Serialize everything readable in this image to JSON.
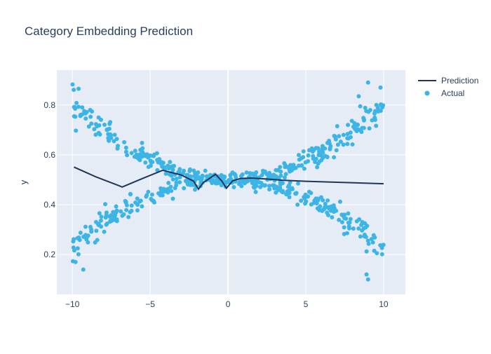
{
  "chart_data": {
    "type": "scatter",
    "title": "Category Embedding Prediction",
    "xlabel": "",
    "ylabel": "y",
    "xlim": [
      -11.0,
      11.4
    ],
    "ylim": [
      0.04,
      0.94
    ],
    "xticks": [
      -10,
      -5,
      0,
      5,
      10
    ],
    "xtick_labels": [
      "−10",
      "−5",
      "0",
      "5",
      "10"
    ],
    "yticks": [
      0.2,
      0.4,
      0.6,
      0.8
    ],
    "ytick_labels": [
      "0.2",
      "0.4",
      "0.6",
      "0.8"
    ],
    "grid": true,
    "legend_position": "top-right",
    "colors": {
      "plot_bg": "#e5ecf6",
      "grid": "#ffffff",
      "prediction": "#1f3557",
      "actual": "#3db4e6"
    },
    "series": [
      {
        "name": "Prediction",
        "kind": "line",
        "x": [
          -9.9,
          -8.5,
          -7.0,
          -6.8,
          -5.5,
          -4.2,
          -3.0,
          -2.2,
          -1.9,
          -1.6,
          -0.8,
          -0.4,
          -0.1,
          0.3,
          0.8,
          1.5,
          2.5,
          3.5,
          5.0,
          7.0,
          10.0
        ],
        "y": [
          0.551,
          0.512,
          0.476,
          0.471,
          0.505,
          0.538,
          0.519,
          0.494,
          0.462,
          0.488,
          0.522,
          0.495,
          0.466,
          0.496,
          0.505,
          0.507,
          0.503,
          0.498,
          0.494,
          0.49,
          0.484
        ]
      },
      {
        "name": "Actual",
        "kind": "markers",
        "bands": [
          {
            "a": 0.5,
            "b": 0.00307,
            "spread": 0.028
          },
          {
            "a": 0.5,
            "b": -0.00278,
            "spread": 0.028
          }
        ],
        "x_range": [
          -10.0,
          10.0
        ],
        "points_per_band": 330,
        "outliers": [
          {
            "x": -9.8,
            "y": 0.17
          },
          {
            "x": -9.6,
            "y": 0.865
          },
          {
            "x": -9.3,
            "y": 0.14
          },
          {
            "x": 9.0,
            "y": 0.89
          },
          {
            "x": 9.0,
            "y": 0.1
          },
          {
            "x": 8.9,
            "y": 0.12
          },
          {
            "x": 9.8,
            "y": 0.87
          },
          {
            "x": 8.4,
            "y": 0.835
          }
        ]
      }
    ]
  }
}
